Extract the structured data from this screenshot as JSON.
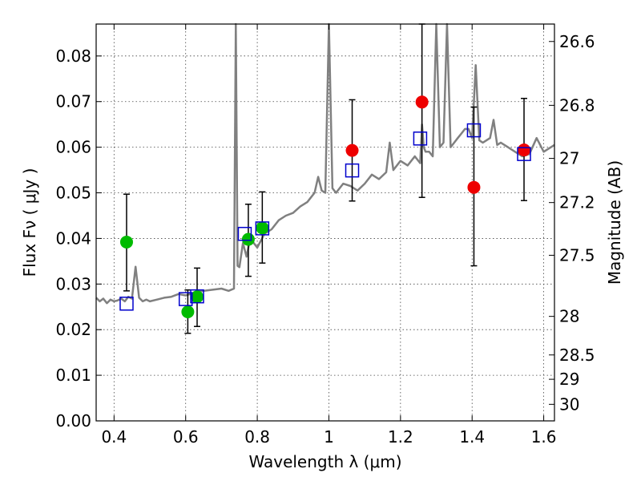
{
  "chart_data": {
    "type": "scatter",
    "title": "",
    "xlabel": "Wavelength  λ (μm)",
    "ylabel": "Flux  Fν  ( μJy )",
    "y2label": "Magnitude (AB)",
    "xlim": [
      0.35,
      1.63
    ],
    "ylim": [
      0.0,
      0.087
    ],
    "grid": true,
    "legend": "none",
    "x_ticks": [
      "0.4",
      "0.6",
      "0.8",
      "1",
      "1.2",
      "1.4",
      "1.6"
    ],
    "y_ticks": [
      "0.00",
      "0.01",
      "0.02",
      "0.03",
      "0.04",
      "0.05",
      "0.06",
      "0.07",
      "0.08"
    ],
    "y2_ticks": [
      "26.6",
      "26.8",
      "27",
      "27.2",
      "27.5",
      "28",
      "28.5",
      "29",
      "30"
    ],
    "colors": {
      "spectrum": "#808080",
      "green": "#00bb00",
      "red": "#ee0000",
      "model": "#0000cc",
      "errorbar": "#000000",
      "grid": "#444444"
    },
    "series": [
      {
        "marker": "circle",
        "color": "green",
        "points": [
          {
            "x": 0.435,
            "y": 0.0392,
            "yerr": [
              0.0285,
              0.0497
            ]
          },
          {
            "x": 0.606,
            "y": 0.0239,
            "yerr": [
              0.0192,
              0.0287
            ]
          },
          {
            "x": 0.632,
            "y": 0.0272,
            "yerr": [
              0.0207,
              0.0335
            ]
          },
          {
            "x": 0.775,
            "y": 0.0398,
            "yerr": [
              0.0317,
              0.0475
            ]
          },
          {
            "x": 0.814,
            "y": 0.0423,
            "yerr": [
              0.0346,
              0.0502
            ]
          }
        ]
      },
      {
        "marker": "circle",
        "color": "red",
        "points": [
          {
            "x": 1.065,
            "y": 0.0593,
            "yerr": [
              0.0482,
              0.0704
            ]
          },
          {
            "x": 1.26,
            "y": 0.0699,
            "yerr": [
              0.049,
              0.087
            ]
          },
          {
            "x": 1.405,
            "y": 0.0512,
            "yerr": [
              0.034,
              0.0688
            ]
          },
          {
            "x": 1.545,
            "y": 0.0594,
            "yerr": [
              0.0483,
              0.0707
            ]
          }
        ]
      },
      {
        "marker": "square",
        "color": "model",
        "points": [
          {
            "x": 0.435,
            "y": 0.0257
          },
          {
            "x": 0.6,
            "y": 0.0267
          },
          {
            "x": 0.632,
            "y": 0.0273
          },
          {
            "x": 0.765,
            "y": 0.041
          },
          {
            "x": 0.814,
            "y": 0.0422
          },
          {
            "x": 1.065,
            "y": 0.0549
          },
          {
            "x": 1.255,
            "y": 0.0619
          },
          {
            "x": 1.405,
            "y": 0.0637
          },
          {
            "x": 1.545,
            "y": 0.0585
          }
        ]
      },
      {
        "type": "line",
        "color": "spectrum",
        "x": [
          0.35,
          0.36,
          0.37,
          0.38,
          0.39,
          0.4,
          0.41,
          0.42,
          0.43,
          0.44,
          0.45,
          0.46,
          0.47,
          0.48,
          0.49,
          0.5,
          0.52,
          0.54,
          0.56,
          0.58,
          0.6,
          0.62,
          0.64,
          0.66,
          0.68,
          0.7,
          0.72,
          0.735,
          0.74,
          0.745,
          0.75,
          0.76,
          0.77,
          0.78,
          0.8,
          0.82,
          0.84,
          0.86,
          0.88,
          0.9,
          0.92,
          0.94,
          0.95,
          0.96,
          0.97,
          0.98,
          0.99,
          1.0,
          1.01,
          1.02,
          1.04,
          1.06,
          1.08,
          1.1,
          1.12,
          1.14,
          1.16,
          1.17,
          1.18,
          1.2,
          1.22,
          1.24,
          1.255,
          1.26,
          1.265,
          1.27,
          1.28,
          1.29,
          1.3,
          1.31,
          1.32,
          1.33,
          1.34,
          1.35,
          1.36,
          1.37,
          1.38,
          1.39,
          1.4,
          1.41,
          1.42,
          1.43,
          1.44,
          1.45,
          1.46,
          1.47,
          1.48,
          1.5,
          1.52,
          1.54,
          1.56,
          1.58,
          1.6,
          1.63
        ],
        "y": [
          0.027,
          0.0262,
          0.0268,
          0.0258,
          0.0266,
          0.0262,
          0.0264,
          0.0268,
          0.0262,
          0.0272,
          0.0268,
          0.0338,
          0.027,
          0.0262,
          0.0266,
          0.0262,
          0.0266,
          0.027,
          0.0272,
          0.0278,
          0.0275,
          0.028,
          0.0284,
          0.0286,
          0.0288,
          0.029,
          0.0285,
          0.029,
          0.087,
          0.034,
          0.0337,
          0.039,
          0.036,
          0.04,
          0.038,
          0.041,
          0.042,
          0.044,
          0.045,
          0.0456,
          0.047,
          0.048,
          0.049,
          0.05,
          0.0535,
          0.0505,
          0.05,
          0.087,
          0.051,
          0.05,
          0.052,
          0.0515,
          0.0505,
          0.052,
          0.054,
          0.053,
          0.0545,
          0.061,
          0.055,
          0.057,
          0.056,
          0.058,
          0.0565,
          0.065,
          0.06,
          0.059,
          0.059,
          0.058,
          0.087,
          0.06,
          0.061,
          0.087,
          0.06,
          0.061,
          0.062,
          0.063,
          0.064,
          0.064,
          0.062,
          0.078,
          0.0615,
          0.061,
          0.0615,
          0.062,
          0.066,
          0.0605,
          0.061,
          0.06,
          0.059,
          0.058,
          0.0585,
          0.062,
          0.059,
          0.0605
        ]
      }
    ]
  }
}
